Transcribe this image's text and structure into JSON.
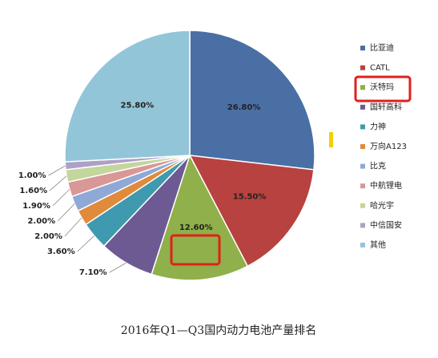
{
  "chart_data": {
    "type": "pie",
    "title": "2016年Q1—Q3国内动力电池产量排名",
    "categories": [
      "比亚迪",
      "CATL",
      "沃特玛",
      "国轩高科",
      "力神",
      "万向A123",
      "比克",
      "中航锂电",
      "哈光宇",
      "中信国安",
      "其他"
    ],
    "values": [
      26.8,
      15.5,
      12.6,
      7.1,
      3.6,
      2.0,
      2.0,
      1.9,
      1.6,
      1.0,
      25.8
    ],
    "value_labels": [
      "26.80%",
      "15.50%",
      "12.60%",
      "7.10%",
      "3.60%",
      "2.00%",
      "2.00%",
      "1.90%",
      "1.60%",
      "1.00%",
      "25.80%"
    ],
    "colors": [
      "#4a6fa5",
      "#b84240",
      "#8fb04a",
      "#6d5a93",
      "#3f9aaf",
      "#e08a3c",
      "#8ea9d6",
      "#d99795",
      "#c3d69b",
      "#aea0c6",
      "#93c5d9"
    ],
    "legend": "right"
  }
}
